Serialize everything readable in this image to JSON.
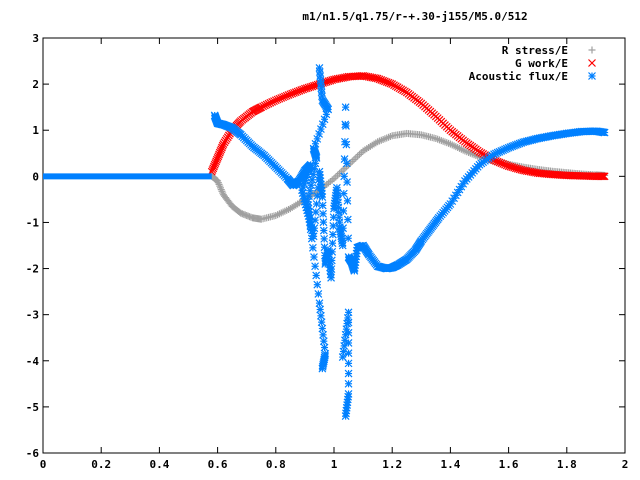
{
  "chart_data": {
    "type": "scatter",
    "title": "m1/n1.5/q1.75/r-+.30-j155/M5.0/512",
    "xlabel": "",
    "ylabel": "",
    "xlim": [
      0,
      2
    ],
    "ylim": [
      -6,
      3
    ],
    "x_ticks": [
      0,
      0.2,
      0.4,
      0.6,
      0.8,
      1,
      1.2,
      1.4,
      1.6,
      1.8,
      2
    ],
    "x_tick_labels": [
      "0",
      "0.2",
      "0.4",
      "0.6",
      "0.8",
      "1",
      "1.2",
      "1.4",
      "1.6",
      "1.8",
      "2"
    ],
    "y_ticks": [
      -6,
      -5,
      -4,
      -3,
      -2,
      -1,
      0,
      1,
      2,
      3
    ],
    "y_tick_labels": [
      "-6",
      "-5",
      "-4",
      "-3",
      "-2",
      "-1",
      "0",
      "1",
      "2",
      "3"
    ],
    "grid": false,
    "legend_position": "top-right",
    "series": [
      {
        "name": "R stress/E",
        "marker": "plus",
        "color": "#a0a0a0",
        "points": [
          [
            0.58,
            0.0
          ],
          [
            0.6,
            -0.1
          ],
          [
            0.62,
            -0.4
          ],
          [
            0.65,
            -0.65
          ],
          [
            0.68,
            -0.8
          ],
          [
            0.72,
            -0.9
          ],
          [
            0.75,
            -0.93
          ],
          [
            0.8,
            -0.85
          ],
          [
            0.85,
            -0.7
          ],
          [
            0.9,
            -0.5
          ],
          [
            0.95,
            -0.3
          ],
          [
            1.0,
            -0.05
          ],
          [
            1.05,
            0.25
          ],
          [
            1.1,
            0.55
          ],
          [
            1.15,
            0.75
          ],
          [
            1.2,
            0.88
          ],
          [
            1.25,
            0.93
          ],
          [
            1.3,
            0.9
          ],
          [
            1.35,
            0.82
          ],
          [
            1.4,
            0.7
          ],
          [
            1.45,
            0.55
          ],
          [
            1.5,
            0.42
          ],
          [
            1.55,
            0.33
          ],
          [
            1.6,
            0.26
          ],
          [
            1.65,
            0.2
          ],
          [
            1.7,
            0.15
          ],
          [
            1.75,
            0.11
          ],
          [
            1.8,
            0.08
          ],
          [
            1.85,
            0.05
          ],
          [
            1.9,
            0.03
          ],
          [
            1.93,
            0.02
          ]
        ]
      },
      {
        "name": "G work/E",
        "marker": "cross",
        "color": "#ff0000",
        "points": [
          [
            0.58,
            0.1
          ],
          [
            0.6,
            0.4
          ],
          [
            0.62,
            0.7
          ],
          [
            0.65,
            1.0
          ],
          [
            0.68,
            1.2
          ],
          [
            0.72,
            1.4
          ],
          [
            0.75,
            1.5
          ],
          [
            0.8,
            1.65
          ],
          [
            0.85,
            1.78
          ],
          [
            0.9,
            1.9
          ],
          [
            0.95,
            2.0
          ],
          [
            1.0,
            2.1
          ],
          [
            1.05,
            2.16
          ],
          [
            1.1,
            2.18
          ],
          [
            1.15,
            2.12
          ],
          [
            1.2,
            2.0
          ],
          [
            1.25,
            1.82
          ],
          [
            1.3,
            1.58
          ],
          [
            1.35,
            1.3
          ],
          [
            1.4,
            1.0
          ],
          [
            1.45,
            0.75
          ],
          [
            1.5,
            0.53
          ],
          [
            1.55,
            0.35
          ],
          [
            1.6,
            0.22
          ],
          [
            1.65,
            0.13
          ],
          [
            1.7,
            0.07
          ],
          [
            1.75,
            0.04
          ],
          [
            1.8,
            0.02
          ],
          [
            1.85,
            0.01
          ],
          [
            1.9,
            0.0
          ],
          [
            1.93,
            0.0
          ]
        ]
      },
      {
        "name": "Acoustic flux/E",
        "marker": "star",
        "color": "#0080ff",
        "points": [
          [
            0.59,
            1.32
          ],
          [
            0.6,
            1.15
          ],
          [
            0.62,
            1.12
          ],
          [
            0.65,
            1.05
          ],
          [
            0.68,
            0.9
          ],
          [
            0.72,
            0.65
          ],
          [
            0.76,
            0.45
          ],
          [
            0.8,
            0.2
          ],
          [
            0.84,
            -0.05
          ],
          [
            0.86,
            -0.2
          ],
          [
            0.88,
            -0.1
          ],
          [
            0.9,
            0.12
          ],
          [
            0.92,
            0.25
          ],
          [
            0.89,
            -0.3
          ],
          [
            0.91,
            -0.8
          ],
          [
            0.93,
            -1.3
          ],
          [
            0.95,
            0.1
          ],
          [
            0.96,
            -0.45
          ],
          [
            0.97,
            -1.9
          ],
          [
            0.98,
            -1.6
          ],
          [
            0.99,
            -2.2
          ],
          [
            1.0,
            -0.7
          ],
          [
            1.01,
            -0.25
          ],
          [
            1.02,
            -1.1
          ],
          [
            1.03,
            -1.5
          ],
          [
            1.04,
            1.5
          ],
          [
            1.05,
            -1.75
          ],
          [
            1.06,
            -1.85
          ],
          [
            1.07,
            -2.05
          ],
          [
            1.08,
            -1.55
          ],
          [
            1.1,
            -1.5
          ],
          [
            1.12,
            -1.7
          ],
          [
            1.15,
            -1.95
          ],
          [
            1.18,
            -2.0
          ],
          [
            1.2,
            -1.98
          ],
          [
            1.22,
            -1.92
          ],
          [
            1.25,
            -1.8
          ],
          [
            1.28,
            -1.6
          ],
          [
            1.3,
            -1.4
          ],
          [
            1.33,
            -1.15
          ],
          [
            1.36,
            -0.9
          ],
          [
            1.4,
            -0.6
          ],
          [
            1.45,
            -0.1
          ],
          [
            1.5,
            0.25
          ],
          [
            1.55,
            0.48
          ],
          [
            1.6,
            0.62
          ],
          [
            1.65,
            0.74
          ],
          [
            1.7,
            0.82
          ],
          [
            1.75,
            0.88
          ],
          [
            1.8,
            0.93
          ],
          [
            1.85,
            0.97
          ],
          [
            1.9,
            0.98
          ],
          [
            1.93,
            0.95
          ],
          [
            0.95,
            2.35
          ],
          [
            0.96,
            1.65
          ],
          [
            0.98,
            1.45
          ],
          [
            0.93,
            0.6
          ],
          [
            0.94,
            0.4
          ],
          [
            0.91,
            -0.55
          ],
          [
            0.92,
            -1.15
          ],
          [
            0.95,
            -2.75
          ],
          [
            0.97,
            -3.85
          ],
          [
            0.96,
            -4.17
          ],
          [
            1.03,
            -3.92
          ],
          [
            1.05,
            -2.95
          ],
          [
            1.05,
            -4.72
          ],
          [
            1.04,
            -5.2
          ]
        ],
        "zero_segment": [
          0,
          0.58
        ]
      }
    ]
  }
}
